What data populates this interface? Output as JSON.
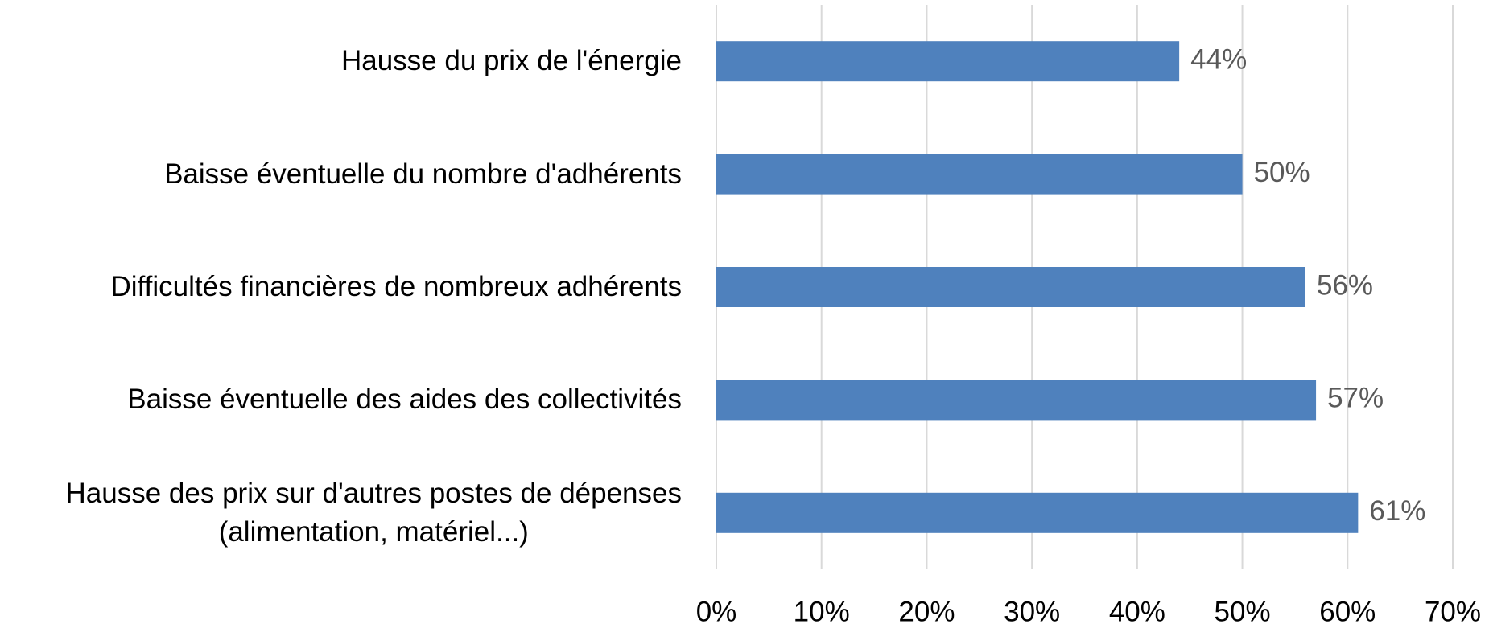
{
  "chart_data": {
    "type": "bar",
    "orientation": "horizontal",
    "categories": [
      "Hausse du prix de l'énergie",
      "Baisse éventuelle du nombre d'adhérents",
      "Difficultés financières de nombreux adhérents",
      "Baisse éventuelle des aides des collectivités",
      "Hausse des prix sur d'autres postes de dépenses\n(alimentation, matériel...)"
    ],
    "values": [
      44,
      50,
      56,
      57,
      61
    ],
    "value_labels": [
      "44%",
      "50%",
      "56%",
      "57%",
      "61%"
    ],
    "color": "#4f81bd",
    "xlim": [
      0,
      70
    ],
    "xticks": [
      {
        "value": 0,
        "label": "0%"
      },
      {
        "value": 10,
        "label": "10%"
      },
      {
        "value": 20,
        "label": "20%"
      },
      {
        "value": 30,
        "label": "30%"
      },
      {
        "value": 40,
        "label": "40%"
      },
      {
        "value": 50,
        "label": "50%"
      },
      {
        "value": 60,
        "label": "60%"
      },
      {
        "value": 70,
        "label": "70%"
      }
    ],
    "grid": true
  }
}
